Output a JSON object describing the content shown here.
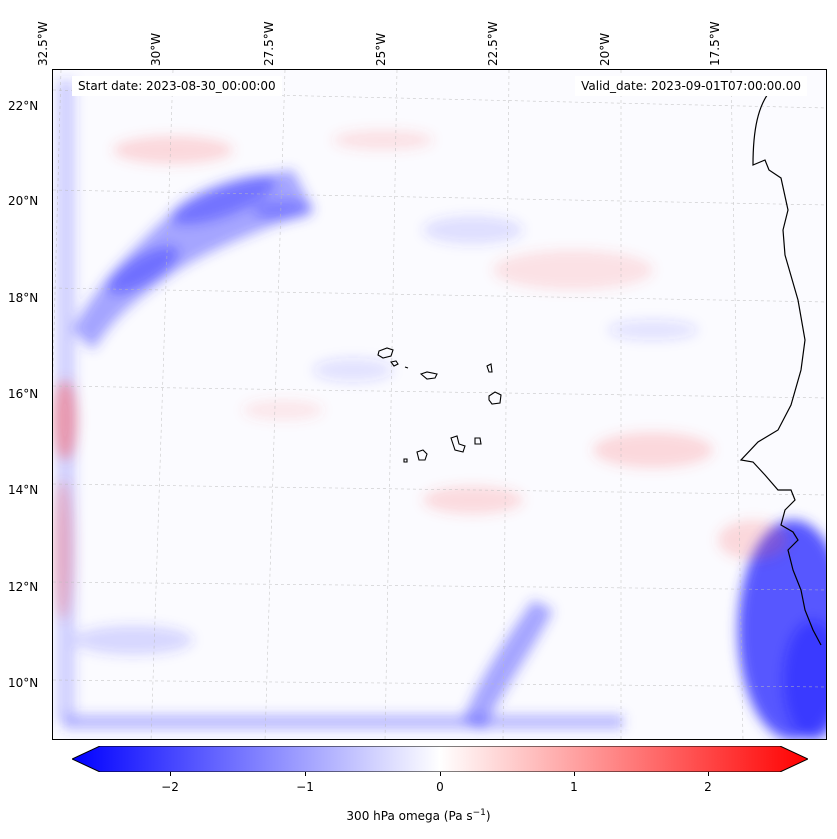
{
  "map": {
    "start_label": "Start date: 2023-08-30_00:00:00",
    "valid_label": "Valid_date: 2023-09-01T07:00:00.00",
    "lon_labels": [
      "32.5°W",
      "30°W",
      "27.5°W",
      "25°W",
      "22.5°W",
      "20°W",
      "17.5°W"
    ],
    "lat_labels": [
      "22°N",
      "20°N",
      "18°N",
      "16°N",
      "14°N",
      "12°N",
      "10°N"
    ],
    "field": "300 hPa omega",
    "colormap": "bwr",
    "colors": {
      "negative": "#0000ff",
      "zero": "#ffffff",
      "positive": "#ff0000",
      "coast": "#000000",
      "grid": "#bbbbbb"
    }
  },
  "colorbar": {
    "label": "300 hPa omega (Pa s",
    "label_exp": "−1",
    "label_end": ")",
    "ticks": [
      "−2",
      "−1",
      "0",
      "1",
      "2"
    ],
    "range": [
      -2.7,
      2.7
    ],
    "extend": "both"
  }
}
